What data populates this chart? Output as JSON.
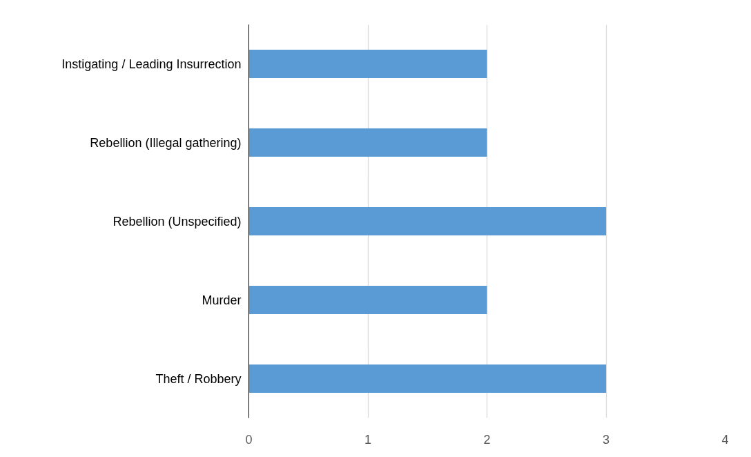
{
  "chart_data": {
    "type": "bar",
    "orientation": "horizontal",
    "categories": [
      "Instigating / Leading Insurrection",
      "Rebellion (Illegal gathering)",
      "Rebellion (Unspecified)",
      "Murder",
      "Theft / Robbery"
    ],
    "values": [
      2,
      2,
      3,
      2,
      3
    ],
    "color": "#5b9bd5",
    "xlim": [
      0,
      4
    ],
    "xticks": [
      0,
      1,
      2,
      3,
      4
    ],
    "grid": "x"
  }
}
